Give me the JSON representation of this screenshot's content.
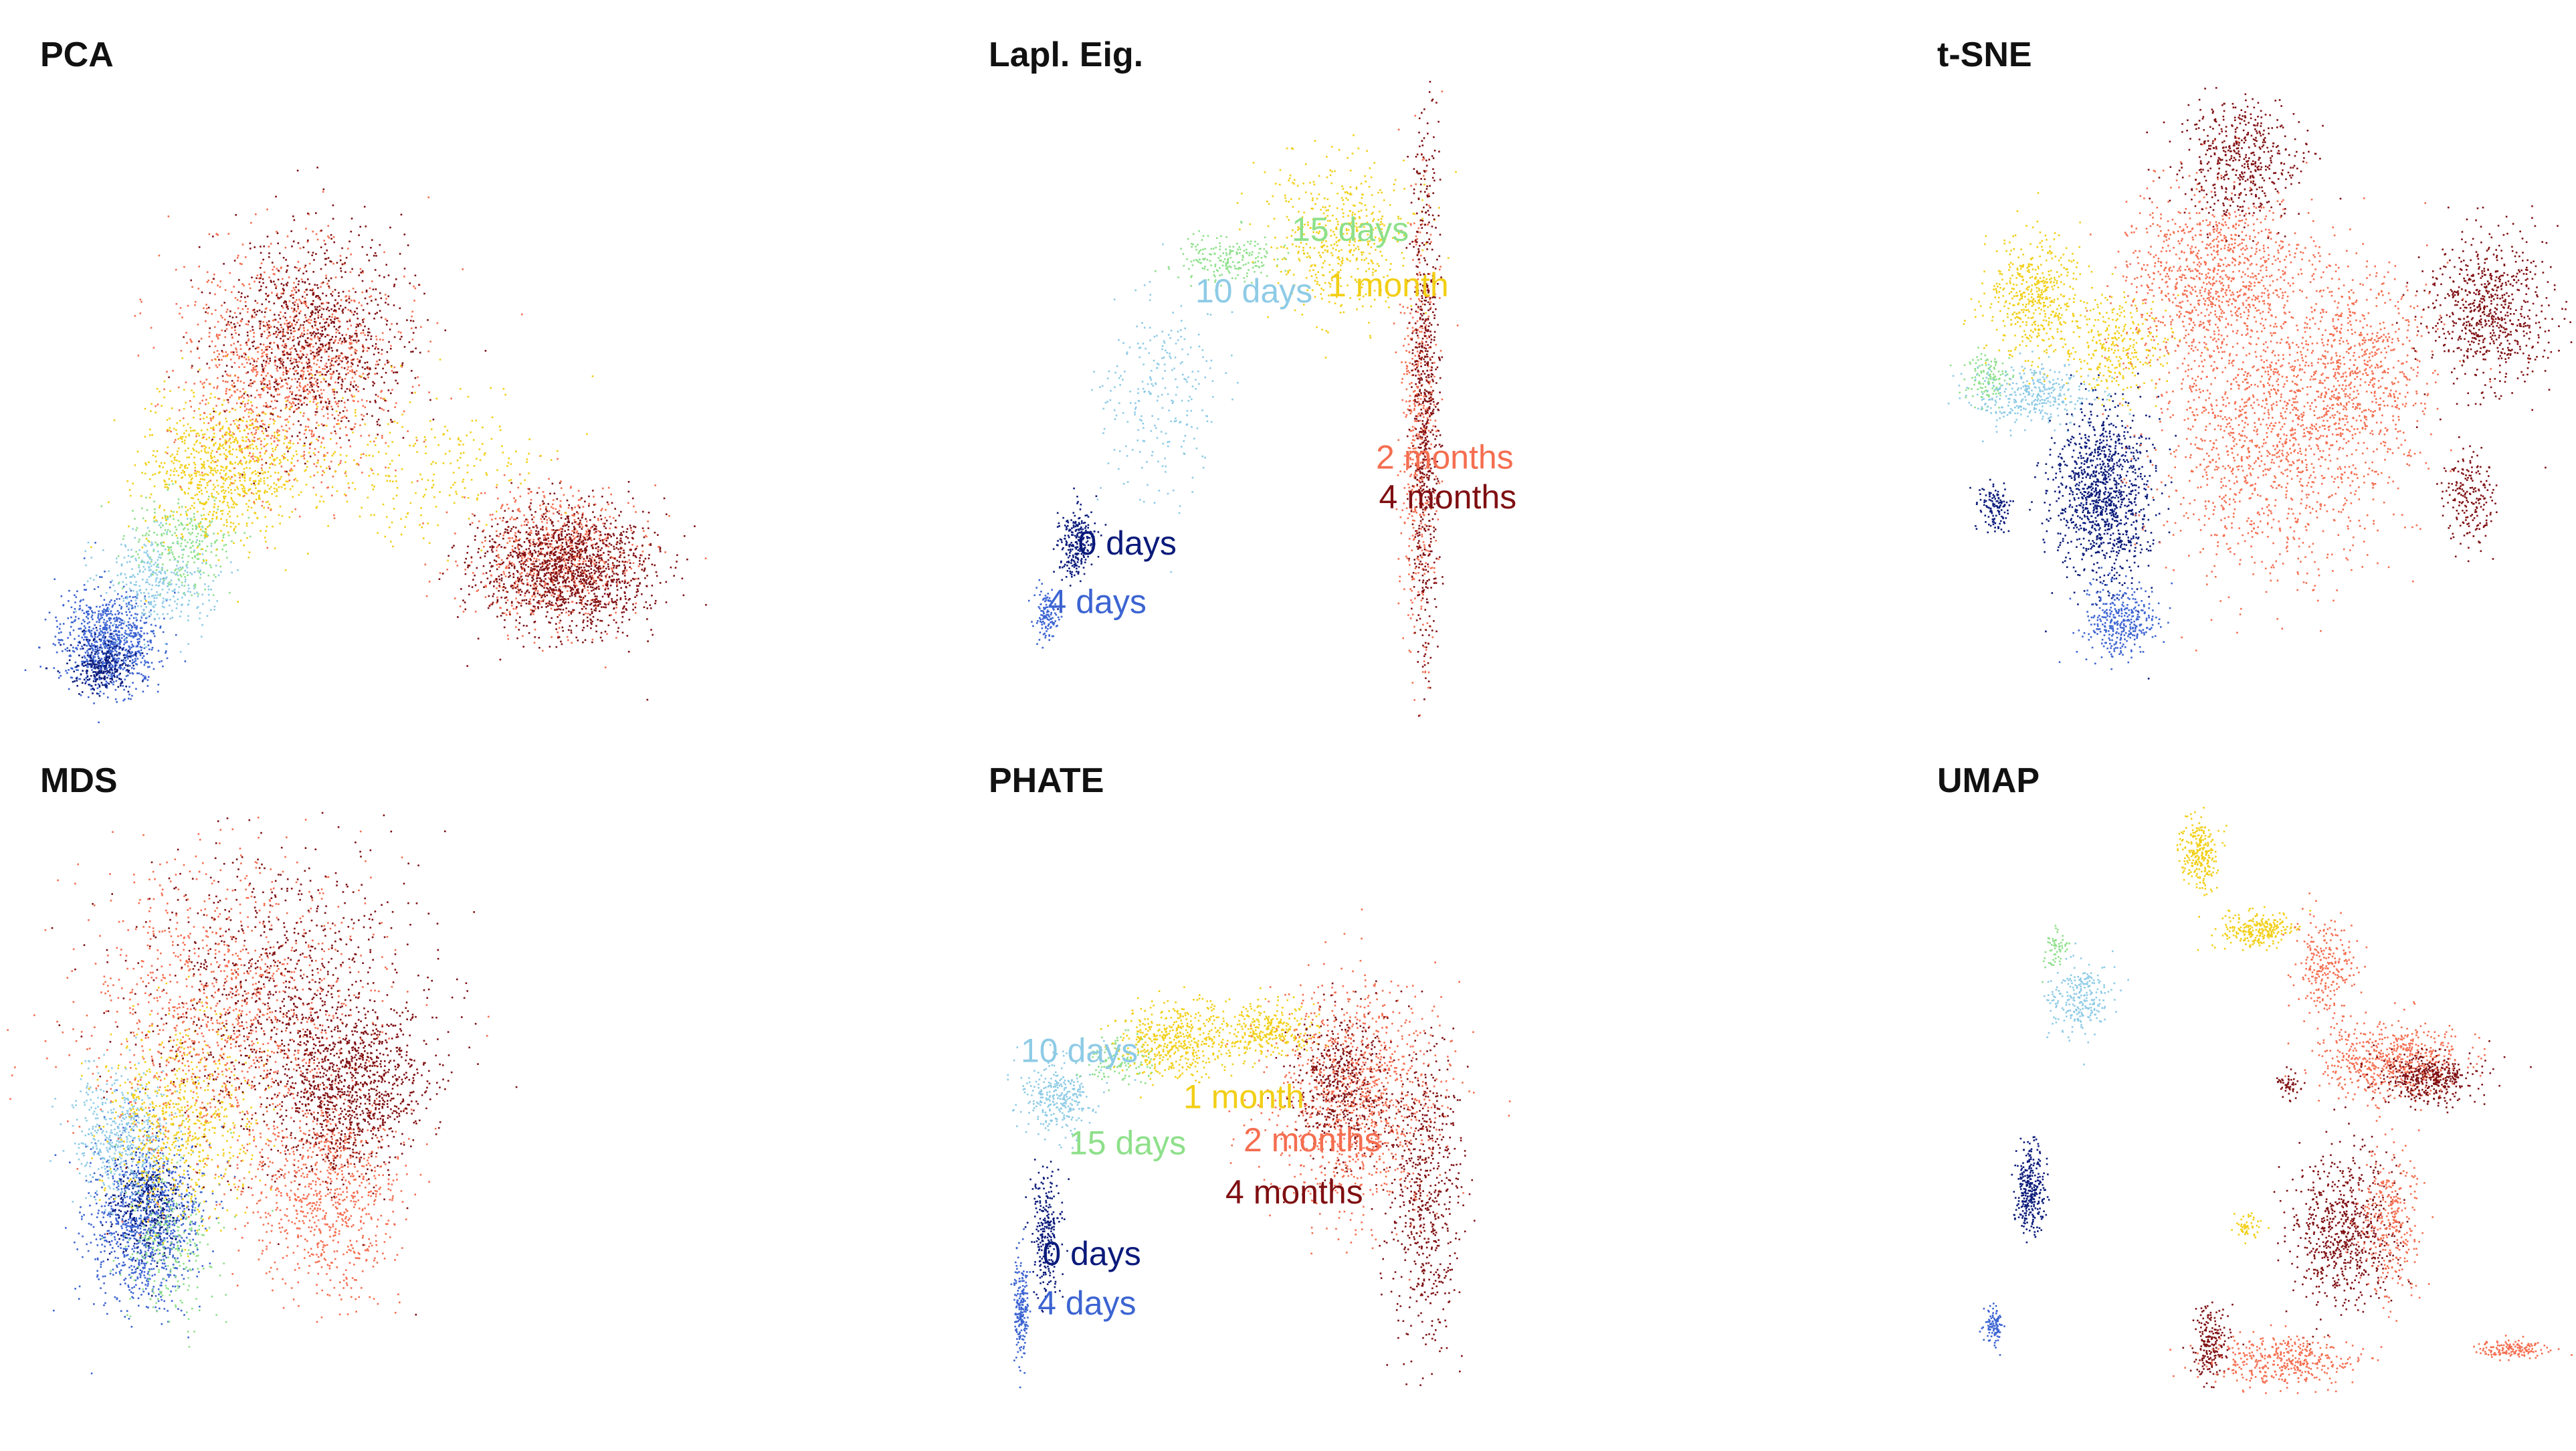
{
  "figure": {
    "colors": {
      "0 days": "#0a1a7a",
      "4 days": "#3c64d2",
      "10 days": "#8ecbe6",
      "15 days": "#8ee08a",
      "1 month": "#f2cf16",
      "2 months": "#f46e50",
      "4 months": "#7f0f12"
    }
  },
  "chart_data": [
    {
      "type": "scatter",
      "title": "PCA",
      "labels": [],
      "clusters": [
        {
          "group": "4 days",
          "cx": 0.08,
          "cy": 0.9,
          "sx": 0.04,
          "sy": 0.04,
          "count": 900
        },
        {
          "group": "0 days",
          "cx": 0.07,
          "cy": 0.94,
          "sx": 0.025,
          "sy": 0.02,
          "count": 250
        },
        {
          "group": "10 days",
          "cx": 0.16,
          "cy": 0.8,
          "sx": 0.045,
          "sy": 0.04,
          "count": 350
        },
        {
          "group": "15 days",
          "cx": 0.2,
          "cy": 0.74,
          "sx": 0.04,
          "sy": 0.04,
          "count": 250
        },
        {
          "group": "1 month",
          "cx": 0.27,
          "cy": 0.62,
          "sx": 0.065,
          "sy": 0.06,
          "count": 900
        },
        {
          "group": "2 months",
          "cx": 0.38,
          "cy": 0.45,
          "sx": 0.09,
          "sy": 0.09,
          "count": 1200
        },
        {
          "group": "4 months",
          "cx": 0.42,
          "cy": 0.4,
          "sx": 0.08,
          "sy": 0.08,
          "count": 900
        },
        {
          "group": "2 months",
          "cx": 0.82,
          "cy": 0.76,
          "sx": 0.07,
          "sy": 0.055,
          "count": 700
        },
        {
          "group": "4 months",
          "cx": 0.84,
          "cy": 0.78,
          "sx": 0.07,
          "sy": 0.05,
          "count": 1400
        },
        {
          "group": "1 month",
          "cx": 0.6,
          "cy": 0.62,
          "sx": 0.1,
          "sy": 0.07,
          "count": 250
        }
      ]
    },
    {
      "type": "scatter",
      "title": "Lapl. Eig.",
      "labels": [
        {
          "text": "15 days",
          "group": "15 days",
          "x": 0.47,
          "y": 0.25
        },
        {
          "text": "10 days",
          "group": "10 days",
          "x": 0.31,
          "y": 0.35
        },
        {
          "text": "1 month",
          "group": "1 month",
          "x": 0.53,
          "y": 0.34
        },
        {
          "text": "2 months",
          "group": "2 months",
          "x": 0.61,
          "y": 0.62
        },
        {
          "text": "4 months",
          "group": "4 months",
          "x": 0.615,
          "y": 0.685
        },
        {
          "text": "0 days",
          "group": "0 days",
          "x": 0.115,
          "y": 0.76
        },
        {
          "text": "4 days",
          "group": "4 days",
          "x": 0.065,
          "y": 0.855
        }
      ],
      "clusters": [
        {
          "group": "4 days",
          "cx": 0.06,
          "cy": 0.86,
          "sx": 0.01,
          "sy": 0.02,
          "count": 120
        },
        {
          "group": "0 days",
          "cx": 0.11,
          "cy": 0.74,
          "sx": 0.015,
          "sy": 0.03,
          "count": 250
        },
        {
          "group": "10 days",
          "cx": 0.25,
          "cy": 0.5,
          "sx": 0.05,
          "sy": 0.08,
          "count": 250
        },
        {
          "group": "15 days",
          "cx": 0.36,
          "cy": 0.28,
          "sx": 0.04,
          "sy": 0.02,
          "count": 200
        },
        {
          "group": "1 month",
          "cx": 0.55,
          "cy": 0.24,
          "sx": 0.06,
          "sy": 0.06,
          "count": 500
        },
        {
          "group": "2 months",
          "cx": 0.68,
          "cy": 0.55,
          "sx": 0.015,
          "sy": 0.18,
          "count": 500
        },
        {
          "group": "4 months",
          "cx": 0.69,
          "cy": 0.5,
          "sx": 0.012,
          "sy": 0.22,
          "count": 700
        }
      ]
    },
    {
      "type": "scatter",
      "title": "t-SNE",
      "labels": [],
      "clusters": [
        {
          "group": "1 month",
          "cx": 0.13,
          "cy": 0.34,
          "sx": 0.04,
          "sy": 0.05,
          "count": 500
        },
        {
          "group": "1 month",
          "cx": 0.27,
          "cy": 0.42,
          "sx": 0.04,
          "sy": 0.04,
          "count": 300
        },
        {
          "group": "15 days",
          "cx": 0.05,
          "cy": 0.47,
          "sx": 0.02,
          "sy": 0.02,
          "count": 120
        },
        {
          "group": "10 days",
          "cx": 0.12,
          "cy": 0.5,
          "sx": 0.05,
          "sy": 0.025,
          "count": 350
        },
        {
          "group": "0 days",
          "cx": 0.24,
          "cy": 0.66,
          "sx": 0.04,
          "sy": 0.07,
          "count": 1100
        },
        {
          "group": "0 days",
          "cx": 0.06,
          "cy": 0.68,
          "sx": 0.012,
          "sy": 0.02,
          "count": 120
        },
        {
          "group": "4 days",
          "cx": 0.27,
          "cy": 0.87,
          "sx": 0.03,
          "sy": 0.03,
          "count": 350
        },
        {
          "group": "2 months",
          "cx": 0.42,
          "cy": 0.3,
          "sx": 0.07,
          "sy": 0.07,
          "count": 900
        },
        {
          "group": "2 months",
          "cx": 0.52,
          "cy": 0.55,
          "sx": 0.1,
          "sy": 0.12,
          "count": 1500
        },
        {
          "group": "2 months",
          "cx": 0.67,
          "cy": 0.45,
          "sx": 0.06,
          "sy": 0.08,
          "count": 600
        },
        {
          "group": "4 months",
          "cx": 0.47,
          "cy": 0.12,
          "sx": 0.05,
          "sy": 0.05,
          "count": 500
        },
        {
          "group": "4 months",
          "cx": 0.88,
          "cy": 0.36,
          "sx": 0.05,
          "sy": 0.06,
          "count": 700
        },
        {
          "group": "4 months",
          "cx": 0.85,
          "cy": 0.67,
          "sx": 0.02,
          "sy": 0.04,
          "count": 200
        }
      ]
    },
    {
      "type": "scatter",
      "title": "MDS",
      "labels": [],
      "clusters": [
        {
          "group": "4 days",
          "cx": 0.14,
          "cy": 0.66,
          "sx": 0.045,
          "sy": 0.07,
          "count": 1100
        },
        {
          "group": "0 days",
          "cx": 0.14,
          "cy": 0.64,
          "sx": 0.03,
          "sy": 0.04,
          "count": 300
        },
        {
          "group": "10 days",
          "cx": 0.1,
          "cy": 0.52,
          "sx": 0.04,
          "sy": 0.05,
          "count": 500
        },
        {
          "group": "15 days",
          "cx": 0.18,
          "cy": 0.7,
          "sx": 0.04,
          "sy": 0.06,
          "count": 250
        },
        {
          "group": "1 month",
          "cx": 0.2,
          "cy": 0.5,
          "sx": 0.06,
          "sy": 0.08,
          "count": 700
        },
        {
          "group": "2 months",
          "cx": 0.28,
          "cy": 0.32,
          "sx": 0.12,
          "sy": 0.12,
          "count": 1200
        },
        {
          "group": "4 months",
          "cx": 0.36,
          "cy": 0.3,
          "sx": 0.12,
          "sy": 0.12,
          "count": 900
        },
        {
          "group": "2 months",
          "cx": 0.44,
          "cy": 0.62,
          "sx": 0.06,
          "sy": 0.08,
          "count": 800
        },
        {
          "group": "4 months",
          "cx": 0.48,
          "cy": 0.45,
          "sx": 0.06,
          "sy": 0.07,
          "count": 1000
        }
      ]
    },
    {
      "type": "scatter",
      "title": "PHATE",
      "labels": [
        {
          "text": "10 days",
          "group": "10 days",
          "x": 0.02,
          "y": 0.405
        },
        {
          "text": "1 month",
          "group": "1 month",
          "x": 0.29,
          "y": 0.48
        },
        {
          "text": "2 months",
          "group": "2 months",
          "x": 0.39,
          "y": 0.55
        },
        {
          "text": "15 days",
          "group": "15 days",
          "x": 0.1,
          "y": 0.555
        },
        {
          "text": "4 months",
          "group": "4 months",
          "x": 0.36,
          "y": 0.635
        },
        {
          "text": "0 days",
          "group": "0 days",
          "x": 0.056,
          "y": 0.735
        },
        {
          "text": "4 days",
          "group": "4 days",
          "x": 0.048,
          "y": 0.815
        }
      ],
      "clusters": [
        {
          "group": "4 days",
          "cx": 0.02,
          "cy": 0.8,
          "sx": 0.006,
          "sy": 0.04,
          "count": 200
        },
        {
          "group": "0 days",
          "cx": 0.06,
          "cy": 0.68,
          "sx": 0.012,
          "sy": 0.05,
          "count": 250
        },
        {
          "group": "10 days",
          "cx": 0.08,
          "cy": 0.46,
          "sx": 0.03,
          "sy": 0.03,
          "count": 300
        },
        {
          "group": "15 days",
          "cx": 0.18,
          "cy": 0.4,
          "sx": 0.03,
          "sy": 0.02,
          "count": 120
        },
        {
          "group": "1 month",
          "cx": 0.28,
          "cy": 0.37,
          "sx": 0.05,
          "sy": 0.03,
          "count": 500
        },
        {
          "group": "1 month",
          "cx": 0.43,
          "cy": 0.35,
          "sx": 0.04,
          "sy": 0.02,
          "count": 300
        },
        {
          "group": "2 months",
          "cx": 0.58,
          "cy": 0.46,
          "sx": 0.07,
          "sy": 0.09,
          "count": 1100
        },
        {
          "group": "4 months",
          "cx": 0.55,
          "cy": 0.44,
          "sx": 0.04,
          "sy": 0.06,
          "count": 500
        },
        {
          "group": "4 months",
          "cx": 0.69,
          "cy": 0.62,
          "sx": 0.03,
          "sy": 0.12,
          "count": 600
        }
      ]
    },
    {
      "type": "scatter",
      "title": "UMAP",
      "labels": [],
      "clusters": [
        {
          "group": "1 month",
          "cx": 0.4,
          "cy": 0.06,
          "sx": 0.015,
          "sy": 0.03,
          "count": 250
        },
        {
          "group": "1 month",
          "cx": 0.5,
          "cy": 0.19,
          "sx": 0.03,
          "sy": 0.015,
          "count": 250
        },
        {
          "group": "2 months",
          "cx": 0.61,
          "cy": 0.25,
          "sx": 0.025,
          "sy": 0.04,
          "count": 250
        },
        {
          "group": "15 days",
          "cx": 0.16,
          "cy": 0.22,
          "sx": 0.01,
          "sy": 0.015,
          "count": 60
        },
        {
          "group": "10 days",
          "cx": 0.2,
          "cy": 0.3,
          "sx": 0.025,
          "sy": 0.03,
          "count": 250
        },
        {
          "group": "2 months",
          "cx": 0.72,
          "cy": 0.4,
          "sx": 0.06,
          "sy": 0.03,
          "count": 600
        },
        {
          "group": "4 months",
          "cx": 0.78,
          "cy": 0.43,
          "sx": 0.04,
          "sy": 0.02,
          "count": 400
        },
        {
          "group": "4 months",
          "cx": 0.55,
          "cy": 0.44,
          "sx": 0.01,
          "sy": 0.01,
          "count": 50
        },
        {
          "group": "0 days",
          "cx": 0.12,
          "cy": 0.61,
          "sx": 0.012,
          "sy": 0.035,
          "count": 300
        },
        {
          "group": "4 months",
          "cx": 0.64,
          "cy": 0.68,
          "sx": 0.045,
          "sy": 0.06,
          "count": 700
        },
        {
          "group": "2 months",
          "cx": 0.72,
          "cy": 0.66,
          "sx": 0.025,
          "sy": 0.06,
          "count": 300
        },
        {
          "group": "1 month",
          "cx": 0.48,
          "cy": 0.67,
          "sx": 0.01,
          "sy": 0.01,
          "count": 50
        },
        {
          "group": "4 days",
          "cx": 0.06,
          "cy": 0.83,
          "sx": 0.008,
          "sy": 0.015,
          "count": 100
        },
        {
          "group": "4 months",
          "cx": 0.42,
          "cy": 0.86,
          "sx": 0.015,
          "sy": 0.03,
          "count": 200
        },
        {
          "group": "2 months",
          "cx": 0.54,
          "cy": 0.89,
          "sx": 0.06,
          "sy": 0.02,
          "count": 400
        },
        {
          "group": "2 months",
          "cx": 0.92,
          "cy": 0.87,
          "sx": 0.03,
          "sy": 0.008,
          "count": 150
        }
      ]
    }
  ]
}
